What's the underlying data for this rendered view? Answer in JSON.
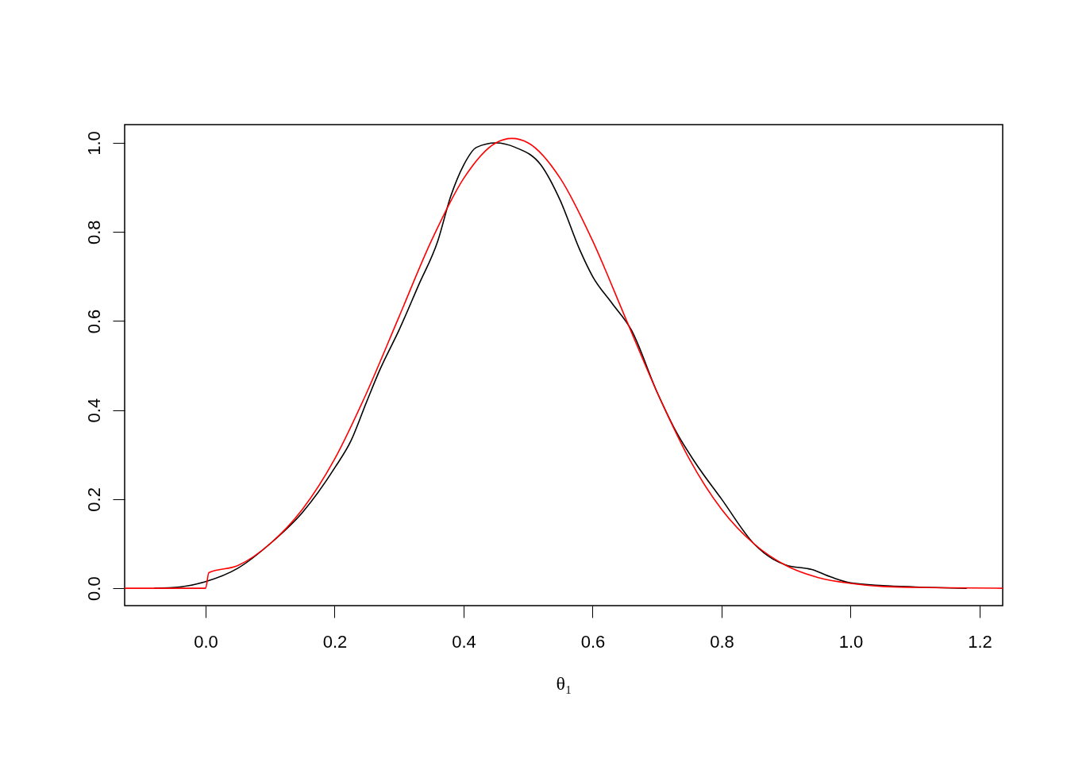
{
  "chart_data": {
    "type": "line",
    "xlabel": "θ₁",
    "xlim": [
      -0.1255,
      1.2357
    ],
    "ylim": [
      -0.039,
      1.041
    ],
    "xticks": [
      {
        "value": 0,
        "label": "0.0"
      },
      {
        "value": 0.2,
        "label": "0.2"
      },
      {
        "value": 0.4,
        "label": "0.4"
      },
      {
        "value": 0.6,
        "label": "0.6"
      },
      {
        "value": 0.8,
        "label": "0.8"
      },
      {
        "value": 1.0,
        "label": "1.0"
      },
      {
        "value": 1.2,
        "label": "1.2"
      }
    ],
    "yticks": [
      {
        "value": 0,
        "label": "0.0"
      },
      {
        "value": 0.2,
        "label": "0.2"
      },
      {
        "value": 0.4,
        "label": "0.4"
      },
      {
        "value": 0.6,
        "label": "0.6"
      },
      {
        "value": 0.8,
        "label": "0.8"
      },
      {
        "value": 1.0,
        "label": "1.0"
      }
    ],
    "grid": false,
    "series": [
      {
        "color": "#000000",
        "x": [
          -0.08,
          -0.04,
          0.0,
          0.05,
          0.1,
          0.15,
          0.2,
          0.225,
          0.25,
          0.27,
          0.3,
          0.33,
          0.36,
          0.38,
          0.4,
          0.42,
          0.45,
          0.48,
          0.52,
          0.55,
          0.58,
          0.6,
          0.63,
          0.66,
          0.7,
          0.73,
          0.76,
          0.8,
          0.85,
          0.88,
          0.9,
          0.94,
          0.97,
          1.0,
          1.05,
          1.1,
          1.18
        ],
        "values": [
          0.0,
          0.003,
          0.015,
          0.045,
          0.1,
          0.17,
          0.27,
          0.33,
          0.42,
          0.49,
          0.58,
          0.68,
          0.78,
          0.88,
          0.95,
          0.99,
          1.0,
          0.99,
          0.95,
          0.87,
          0.76,
          0.7,
          0.64,
          0.58,
          0.44,
          0.35,
          0.28,
          0.2,
          0.1,
          0.065,
          0.052,
          0.042,
          0.025,
          0.012,
          0.006,
          0.003,
          0.0
        ]
      },
      {
        "color": "#ff0000",
        "x": [
          -0.1255,
          0.0,
          0.005,
          0.05,
          0.1,
          0.15,
          0.2,
          0.25,
          0.3,
          0.35,
          0.4,
          0.45,
          0.475,
          0.5,
          0.55,
          0.6,
          0.65,
          0.7,
          0.75,
          0.8,
          0.85,
          0.9,
          0.95,
          1.0,
          1.05,
          1.1,
          1.15,
          1.2357
        ],
        "values": [
          0.0,
          0.0,
          0.035,
          0.051,
          0.1,
          0.177,
          0.29,
          0.44,
          0.61,
          0.78,
          0.92,
          1.0,
          1.01,
          1.0,
          0.92,
          0.78,
          0.61,
          0.44,
          0.29,
          0.177,
          0.1,
          0.051,
          0.024,
          0.011,
          0.004,
          0.002,
          0.001,
          0.0
        ]
      }
    ]
  }
}
